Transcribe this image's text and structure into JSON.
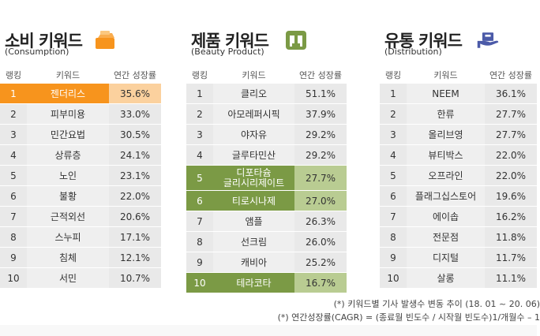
{
  "panels": [
    {
      "title": "소비 키워드",
      "subtitle": "(Consumption)",
      "icon": "orange-box-icon",
      "headers": [
        "랭킹",
        "키워드",
        "연간 성장률"
      ],
      "rows": [
        {
          "rank": "1",
          "keyword": "젠더리스",
          "growth": "35.6%"
        },
        {
          "rank": "2",
          "keyword": "피부미용",
          "growth": "33.0%"
        },
        {
          "rank": "3",
          "keyword": "민간요법",
          "growth": "30.5%"
        },
        {
          "rank": "4",
          "keyword": "상류층",
          "growth": "24.1%"
        },
        {
          "rank": "5",
          "keyword": "노인",
          "growth": "23.1%"
        },
        {
          "rank": "6",
          "keyword": "불황",
          "growth": "22.0%"
        },
        {
          "rank": "7",
          "keyword": "근적외선",
          "growth": "20.6%"
        },
        {
          "rank": "8",
          "keyword": "스누피",
          "growth": "17.1%"
        },
        {
          "rank": "9",
          "keyword": "침체",
          "growth": "12.1%"
        },
        {
          "rank": "10",
          "keyword": "서민",
          "growth": "10.7%"
        }
      ]
    },
    {
      "title": "제품 키워드",
      "subtitle": "(Beauty Product)",
      "icon": "green-product-icon",
      "headers": [
        "랭킹",
        "키워드",
        "연간 성장률"
      ],
      "rows": [
        {
          "rank": "1",
          "keyword": "클리오",
          "growth": "51.1%"
        },
        {
          "rank": "2",
          "keyword": "아모레퍼시픽",
          "growth": "37.9%"
        },
        {
          "rank": "3",
          "keyword": "야자유",
          "growth": "29.2%"
        },
        {
          "rank": "4",
          "keyword": "글루타민산",
          "growth": "29.2%"
        },
        {
          "rank": "5",
          "keyword": "디포타슘\n글리시리제이트",
          "growth": "27.7%"
        },
        {
          "rank": "6",
          "keyword": "티로시나제",
          "growth": "27.0%"
        },
        {
          "rank": "7",
          "keyword": "앰플",
          "growth": "26.3%"
        },
        {
          "rank": "8",
          "keyword": "선크림",
          "growth": "26.0%"
        },
        {
          "rank": "9",
          "keyword": "캐비아",
          "growth": "25.2%"
        },
        {
          "rank": "10",
          "keyword": "테라코타",
          "growth": "16.7%"
        }
      ]
    },
    {
      "title": "유통 키워드",
      "subtitle": "(Distribution)",
      "icon": "blue-hand-box-icon",
      "headers": [
        "랭킹",
        "키워드",
        "연간 성장률"
      ],
      "rows": [
        {
          "rank": "1",
          "keyword": "NEEM",
          "growth": "36.1%"
        },
        {
          "rank": "2",
          "keyword": "한류",
          "growth": "27.7%"
        },
        {
          "rank": "3",
          "keyword": "올리브영",
          "growth": "27.7%"
        },
        {
          "rank": "4",
          "keyword": "뷰티박스",
          "growth": "22.0%"
        },
        {
          "rank": "5",
          "keyword": "오프라인",
          "growth": "22.0%"
        },
        {
          "rank": "6",
          "keyword": "플래그십스토어",
          "growth": "19.6%"
        },
        {
          "rank": "7",
          "keyword": "에이솝",
          "growth": "16.2%"
        },
        {
          "rank": "8",
          "keyword": "전문점",
          "growth": "11.8%"
        },
        {
          "rank": "9",
          "keyword": "디지털",
          "growth": "11.7%"
        },
        {
          "rank": "10",
          "keyword": "살롱",
          "growth": "11.1%"
        }
      ]
    }
  ],
  "notes": {
    "line1": "(*) 키워드별 기사 발생수 변동 추이 (18. 01 ~ 20. 06)",
    "line2": "(*) 연간성장률(CAGR) = (종료월 빈도수 / 시작월 빈도수)1/개월수 – 1"
  },
  "colors": {
    "orange": "#f7941d",
    "green": "#7b9a45",
    "blue": "#4b5aa8"
  }
}
